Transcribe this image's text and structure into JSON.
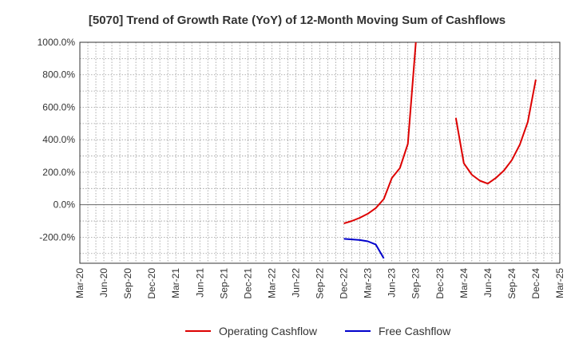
{
  "chart_data": {
    "type": "line",
    "title": "[5070]  Trend of Growth Rate (YoY) of 12-Month Moving Sum of Cashflows",
    "xlabel": "",
    "ylabel": "",
    "ylim": [
      -360,
      1000
    ],
    "yticks": [
      1000,
      800,
      600,
      400,
      200,
      0,
      -200
    ],
    "ytick_labels": [
      "1000.0%",
      "800.0%",
      "600.0%",
      "400.0%",
      "200.0%",
      "0.0%",
      "-200.0%"
    ],
    "xticks": [
      "Mar-20",
      "Jun-20",
      "Sep-20",
      "Dec-20",
      "Mar-21",
      "Jun-21",
      "Sep-21",
      "Dec-21",
      "Mar-22",
      "Jun-22",
      "Sep-22",
      "Dec-22",
      "Mar-23",
      "Jun-23",
      "Sep-23",
      "Dec-23",
      "Mar-24",
      "Jun-24",
      "Sep-24",
      "Dec-24",
      "Mar-25"
    ],
    "grid": true,
    "legend_position": "bottom",
    "series": [
      {
        "name": "Operating Cashflow",
        "color": "#dd0000",
        "points": [
          [
            "Dec-22",
            -115
          ],
          [
            "Jan-23",
            -100
          ],
          [
            "Feb-23",
            -80
          ],
          [
            "Mar-23",
            -55
          ],
          [
            "Apr-23",
            -20
          ],
          [
            "May-23",
            35
          ],
          [
            "Jun-23",
            165
          ],
          [
            "Jul-23",
            225
          ],
          [
            "Aug-23",
            375
          ],
          [
            "Sep-23",
            1000
          ],
          [
            "Feb-24",
            535
          ],
          [
            "Mar-24",
            255
          ],
          [
            "Apr-24",
            185
          ],
          [
            "May-24",
            148
          ],
          [
            "Jun-24",
            130
          ],
          [
            "Jul-24",
            165
          ],
          [
            "Aug-24",
            210
          ],
          [
            "Sep-24",
            275
          ],
          [
            "Oct-24",
            370
          ],
          [
            "Nov-24",
            510
          ],
          [
            "Dec-24",
            770
          ]
        ]
      },
      {
        "name": "Free Cashflow",
        "color": "#0000cc",
        "points": [
          [
            "Dec-22",
            -210
          ],
          [
            "Jan-23",
            -213
          ],
          [
            "Feb-23",
            -217
          ],
          [
            "Mar-23",
            -225
          ],
          [
            "Apr-23",
            -245
          ],
          [
            "May-23",
            -330
          ]
        ]
      }
    ]
  }
}
